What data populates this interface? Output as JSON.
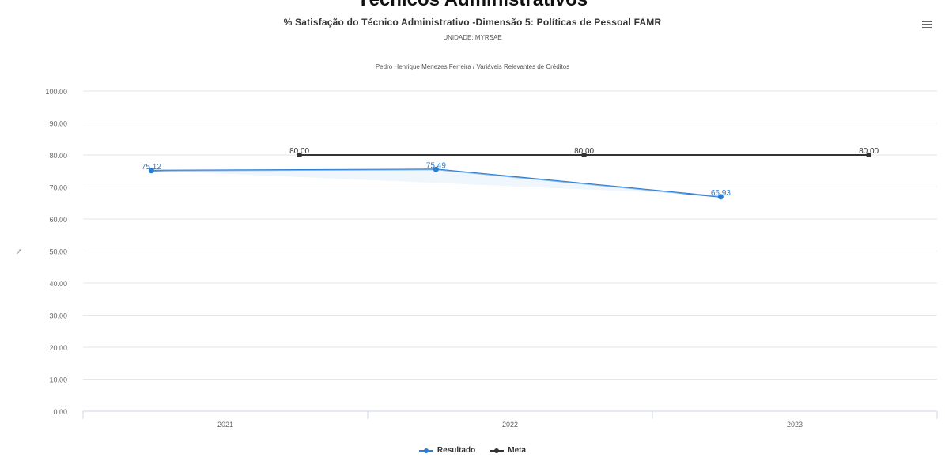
{
  "header": {
    "page_heading": "Técnicos Administrativos",
    "export_icon": "hamburger-menu-icon"
  },
  "chart_data": {
    "type": "line",
    "title": "% Satisfação do Técnico Administrativo -Dimensão 5: Políticas de Pessoal FAMR",
    "subtitle": "UNIDADE: MYRSAE",
    "caption": "Pedro Henrique Menezes Ferreira / Variáveis Relevantes de Créditos",
    "categories": [
      "2021",
      "2022",
      "2023"
    ],
    "ylim": [
      0,
      100
    ],
    "yticks": [
      "0.00",
      "10.00",
      "20.00",
      "30.00",
      "40.00",
      "50.00",
      "60.00",
      "70.00",
      "80.00",
      "90.00",
      "100.00"
    ],
    "grid": true,
    "legend_position": "bottom-center",
    "series": [
      {
        "name": "Resultado",
        "color": "#2b7cd3",
        "values": [
          75.12,
          75.49,
          66.93
        ],
        "labels": [
          "75,12",
          "75,49",
          "66,93"
        ]
      },
      {
        "name": "Meta",
        "color": "#333333",
        "values": [
          80.0,
          80.0,
          80.0
        ],
        "labels": [
          "80,00",
          "80,00",
          "80,00"
        ]
      }
    ]
  }
}
